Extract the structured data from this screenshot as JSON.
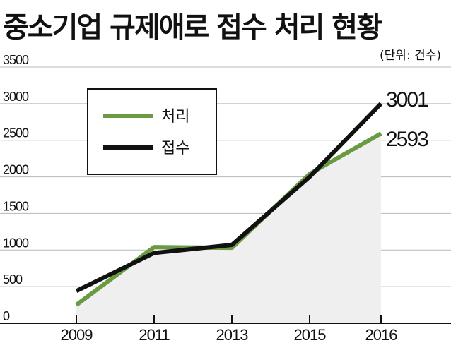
{
  "title": "중소기업 규제애로 접수 처리 현황",
  "unit": "(단위: 건수)",
  "colors": {
    "processed": "#6a9a42",
    "received": "#111111",
    "area": "#efefef",
    "grid": "#b8b8b8"
  },
  "chart_data": {
    "type": "line",
    "categories": [
      "2009",
      "2011",
      "2013",
      "2015",
      "2016"
    ],
    "ylim": [
      0,
      3500
    ],
    "yticks": [
      "0",
      "500",
      "1000",
      "1500",
      "2000",
      "2500",
      "3000",
      "3500"
    ],
    "grid": true,
    "legend_position": "top-left",
    "series": [
      {
        "name": "처리",
        "key": "processed",
        "values": [
          250,
          1040,
          1030,
          2040,
          2593
        ]
      },
      {
        "name": "접수",
        "key": "received",
        "values": [
          440,
          960,
          1070,
          2000,
          3001
        ]
      }
    ],
    "end_labels": {
      "received": "3001",
      "processed": "2593"
    }
  }
}
